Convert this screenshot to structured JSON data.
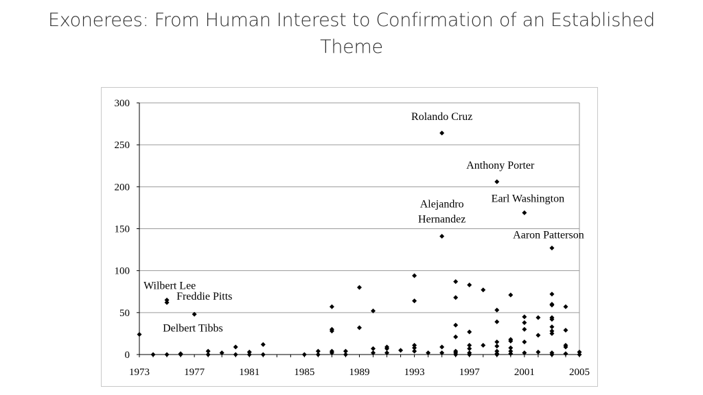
{
  "slide": {
    "title_line1": "Exonerees: From Human Interest to Confirmation of an Established",
    "title_line2": "Theme"
  },
  "chart_data": {
    "type": "scatter",
    "title": "",
    "xlabel": "",
    "ylabel": "",
    "xlim": [
      1973,
      2005
    ],
    "ylim": [
      0,
      300
    ],
    "xticks": [
      1973,
      1977,
      1981,
      1985,
      1989,
      1993,
      1997,
      2001,
      2005
    ],
    "yticks": [
      0,
      50,
      100,
      150,
      200,
      250,
      300
    ],
    "grid": "horizontal",
    "marker": "diamond",
    "marker_color": "#000000",
    "points": [
      [
        1973,
        24
      ],
      [
        1974,
        0
      ],
      [
        1975,
        65
      ],
      [
        1975,
        62
      ],
      [
        1975,
        0
      ],
      [
        1976,
        0
      ],
      [
        1976,
        1
      ],
      [
        1977,
        48
      ],
      [
        1978,
        0
      ],
      [
        1978,
        4
      ],
      [
        1979,
        2
      ],
      [
        1980,
        0
      ],
      [
        1980,
        9
      ],
      [
        1981,
        0
      ],
      [
        1981,
        3
      ],
      [
        1982,
        0
      ],
      [
        1982,
        12
      ],
      [
        1985,
        0
      ],
      [
        1986,
        0
      ],
      [
        1986,
        4
      ],
      [
        1987,
        57
      ],
      [
        1987,
        30
      ],
      [
        1987,
        28
      ],
      [
        1987,
        4
      ],
      [
        1987,
        2
      ],
      [
        1988,
        0
      ],
      [
        1988,
        4
      ],
      [
        1989,
        80
      ],
      [
        1989,
        32
      ],
      [
        1990,
        52
      ],
      [
        1990,
        7
      ],
      [
        1990,
        2
      ],
      [
        1991,
        9
      ],
      [
        1991,
        7
      ],
      [
        1991,
        2
      ],
      [
        1992,
        5
      ],
      [
        1993,
        94
      ],
      [
        1993,
        64
      ],
      [
        1993,
        11
      ],
      [
        1993,
        8
      ],
      [
        1993,
        4
      ],
      [
        1994,
        2
      ],
      [
        1995,
        264
      ],
      [
        1995,
        141
      ],
      [
        1995,
        9
      ],
      [
        1995,
        2
      ],
      [
        1996,
        87
      ],
      [
        1996,
        68
      ],
      [
        1996,
        35
      ],
      [
        1996,
        21
      ],
      [
        1996,
        4
      ],
      [
        1996,
        2
      ],
      [
        1996,
        0
      ],
      [
        1997,
        83
      ],
      [
        1997,
        27
      ],
      [
        1997,
        11
      ],
      [
        1997,
        7
      ],
      [
        1997,
        2
      ],
      [
        1997,
        0
      ],
      [
        1998,
        77
      ],
      [
        1998,
        11
      ],
      [
        1999,
        206
      ],
      [
        1999,
        53
      ],
      [
        1999,
        39
      ],
      [
        1999,
        15
      ],
      [
        1999,
        10
      ],
      [
        1999,
        4
      ],
      [
        1999,
        1
      ],
      [
        1999,
        0
      ],
      [
        2000,
        71
      ],
      [
        2000,
        18
      ],
      [
        2000,
        16
      ],
      [
        2000,
        8
      ],
      [
        2000,
        4
      ],
      [
        2000,
        1
      ],
      [
        2001,
        169
      ],
      [
        2001,
        45
      ],
      [
        2001,
        38
      ],
      [
        2001,
        30
      ],
      [
        2001,
        15
      ],
      [
        2001,
        2
      ],
      [
        2002,
        44
      ],
      [
        2002,
        23
      ],
      [
        2002,
        3
      ],
      [
        2003,
        127
      ],
      [
        2003,
        72
      ],
      [
        2003,
        60
      ],
      [
        2003,
        59
      ],
      [
        2003,
        44
      ],
      [
        2003,
        42
      ],
      [
        2003,
        33
      ],
      [
        2003,
        28
      ],
      [
        2003,
        25
      ],
      [
        2003,
        2
      ],
      [
        2003,
        0
      ],
      [
        2004,
        57
      ],
      [
        2004,
        29
      ],
      [
        2004,
        11
      ],
      [
        2004,
        9
      ],
      [
        2004,
        1
      ],
      [
        2005,
        3
      ],
      [
        2005,
        0
      ]
    ],
    "annotations": [
      {
        "lines": [
          "Rolando Cruz"
        ],
        "x": 1995,
        "y": 264
      },
      {
        "lines": [
          "Anthony Porter"
        ],
        "x": 1999,
        "y": 206
      },
      {
        "lines": [
          "Earl Washington"
        ],
        "x": 2001,
        "y": 169
      },
      {
        "lines": [
          "Alejandro",
          "Hernandez"
        ],
        "x": 1995,
        "y": 141
      },
      {
        "lines": [
          "Aaron Patterson"
        ],
        "x": 2003,
        "y": 127
      },
      {
        "lines": [
          "Wilbert Lee"
        ],
        "x": 1975,
        "y": 65
      },
      {
        "lines": [
          "Freddie Pitts"
        ],
        "x": 1975,
        "y": 62
      },
      {
        "lines": [
          "Delbert Tibbs"
        ],
        "x": 1977,
        "y": 48
      }
    ]
  }
}
